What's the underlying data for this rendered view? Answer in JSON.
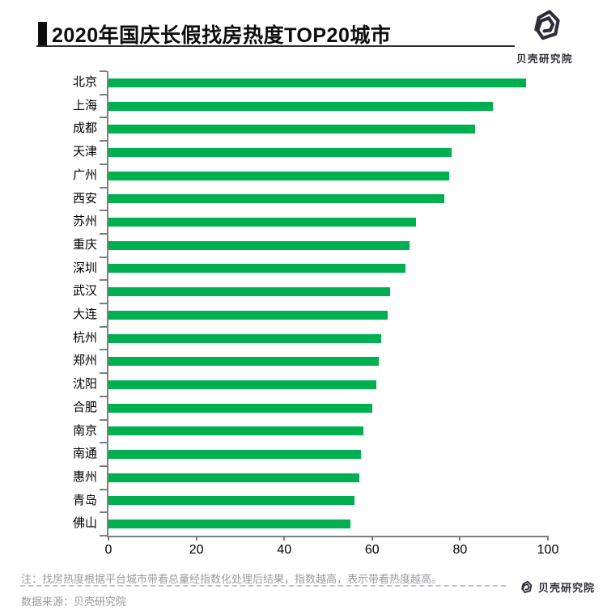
{
  "header": {
    "title": "2020年国庆长假找房热度TOP20城市",
    "accent_color": "#0d0d0d",
    "logo_text": "贝壳研究院"
  },
  "chart_data": {
    "type": "bar",
    "orientation": "horizontal",
    "title": "2020年国庆长假找房热度TOP20城市",
    "categories": [
      "北京",
      "上海",
      "成都",
      "天津",
      "广州",
      "西安",
      "苏州",
      "重庆",
      "深圳",
      "武汉",
      "大连",
      "杭州",
      "郑州",
      "沈阳",
      "合肥",
      "南京",
      "南通",
      "惠州",
      "青岛",
      "佛山"
    ],
    "values": [
      95,
      87.5,
      83.5,
      78,
      77.5,
      76.5,
      70,
      68.5,
      67.5,
      64,
      63.5,
      62,
      61.5,
      61,
      60,
      58,
      57.5,
      57,
      56,
      55
    ],
    "xlabel": "",
    "ylabel": "",
    "xlim": [
      0,
      100
    ],
    "x_ticks": [
      0,
      20,
      40,
      60,
      80,
      100
    ],
    "bar_color": "#00b050",
    "axis_color": "#7f7f7f",
    "grid": false,
    "legend": false
  },
  "footer": {
    "note": "注：找房热度根据平台城市带看总量经指数化处理后结果，指数越高，表示带看热度越高。",
    "source": "数据来源：贝壳研究院",
    "logo_text": "贝壳研究院"
  }
}
